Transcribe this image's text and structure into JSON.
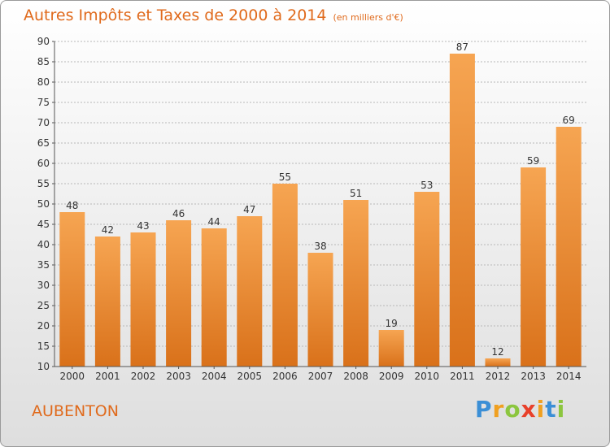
{
  "header": {
    "title": "Autres Impôts et Taxes de 2000 à 2014",
    "subtitle": "(en milliers d'€)"
  },
  "footer": {
    "commune": "AUBENTON",
    "logo_text": "Proxiti",
    "logo_colors": [
      "#3b8fd6",
      "#f0a020",
      "#8cc63f",
      "#e8402a",
      "#f0a020",
      "#3b8fd6",
      "#8cc63f"
    ]
  },
  "colors": {
    "accent": "#e06a1c",
    "bar_top": "#f6a552",
    "bar_bottom": "#d9711a",
    "grid": "#b8b8b8",
    "text": "#333333"
  },
  "chart_data": {
    "type": "bar",
    "categories": [
      "2000",
      "2001",
      "2002",
      "2003",
      "2004",
      "2005",
      "2006",
      "2007",
      "2008",
      "2009",
      "2010",
      "2011",
      "2012",
      "2013",
      "2014"
    ],
    "values": [
      48,
      42,
      43,
      46,
      44,
      47,
      55,
      38,
      51,
      19,
      53,
      87,
      12,
      59,
      69
    ],
    "ylim": [
      10,
      90
    ],
    "yticks": [
      10,
      15,
      20,
      25,
      30,
      35,
      40,
      45,
      50,
      55,
      60,
      65,
      70,
      75,
      80,
      85,
      90
    ],
    "grid": "horizontal",
    "data_labels": true
  }
}
